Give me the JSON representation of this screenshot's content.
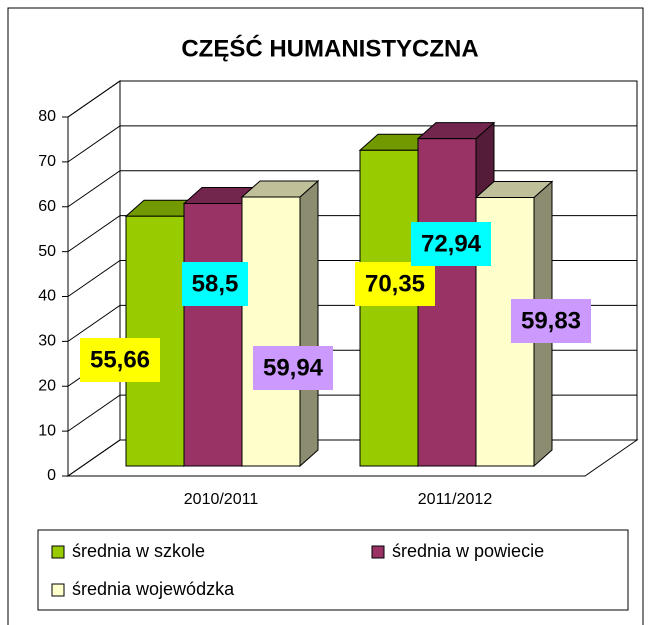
{
  "chart_data": {
    "type": "bar3d",
    "title": "CZĘŚĆ HUMANISTYCZNA",
    "categories": [
      "2010/2011",
      "2011/2012"
    ],
    "series": [
      {
        "name": "średnia w szkole",
        "color": "#99cc00",
        "label_color": "#ffff00",
        "values": [
          55.66,
          70.35
        ],
        "value_labels": [
          "55,66",
          "70,35"
        ]
      },
      {
        "name": "średnia w powiecie",
        "color": "#993366",
        "label_color": "#00ffff",
        "values": [
          58.5,
          72.94
        ],
        "value_labels": [
          "58,5",
          "72,94"
        ]
      },
      {
        "name": "średnia wojewódzka",
        "color": "#ffffcc",
        "label_color": "#cc99ff",
        "values": [
          59.94,
          59.83
        ],
        "value_labels": [
          "59,94",
          "59,83"
        ]
      }
    ],
    "ylim": [
      0,
      80
    ],
    "yticks": [
      0,
      10,
      20,
      30,
      40,
      50,
      60,
      70,
      80
    ],
    "grid": true
  }
}
